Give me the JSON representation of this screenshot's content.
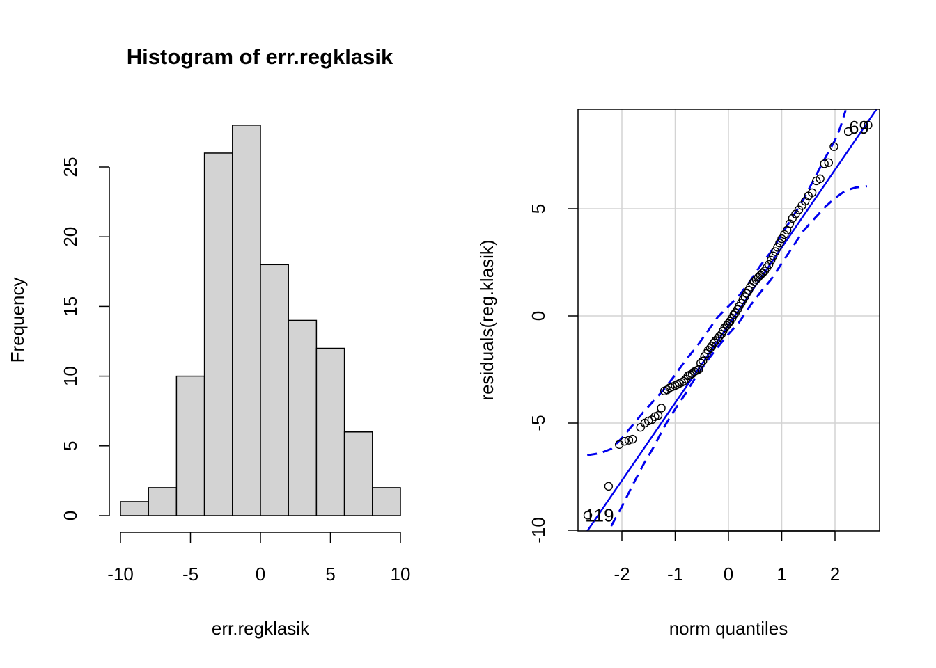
{
  "chart_data": [
    {
      "type": "bar",
      "title": "Histogram of err.regklasik",
      "xlabel": "err.regklasik",
      "ylabel": "Frequency",
      "bin_edges": [
        -10,
        -8,
        -6,
        -4,
        -2,
        0,
        2,
        4,
        6,
        8,
        10
      ],
      "values": [
        1,
        2,
        10,
        26,
        28,
        18,
        14,
        12,
        6,
        2
      ],
      "xlim": [
        -10,
        10
      ],
      "ylim": [
        0,
        25
      ],
      "xticks": [
        -10,
        -5,
        0,
        5,
        10
      ],
      "xtick_labels": [
        "-10",
        "-5",
        "0",
        "5",
        "10"
      ],
      "yticks": [
        0,
        5,
        10,
        15,
        20,
        25
      ],
      "ytick_labels": [
        "0",
        "5",
        "10",
        "15",
        "20",
        "25"
      ],
      "bar_fill": "#d3d3d3",
      "grid": false
    },
    {
      "type": "scatter",
      "title": "",
      "xlabel": "norm quantiles",
      "ylabel": "residuals(reg.klasik)",
      "xlim": [
        -2.75,
        2.85
      ],
      "ylim": [
        -10,
        9.6
      ],
      "xticks": [
        -2,
        -1,
        0,
        1,
        2
      ],
      "xtick_labels": [
        "-2",
        "-1",
        "0",
        "1",
        "2"
      ],
      "yticks": [
        -10,
        -5,
        0,
        5
      ],
      "ytick_labels": [
        "-10",
        "-5",
        "0",
        "5"
      ],
      "grid": true,
      "line_color": "#0000ee",
      "annotations": [
        {
          "text": "69",
          "x": 2.45,
          "y": 8.8
        },
        {
          "text": "119",
          "x": -2.42,
          "y": -9.3
        }
      ],
      "points": [
        [
          -2.64,
          -9.3
        ],
        [
          -2.25,
          -7.95
        ],
        [
          -2.05,
          -6.0
        ],
        [
          -1.95,
          -5.85
        ],
        [
          -1.87,
          -5.8
        ],
        [
          -1.8,
          -5.75
        ],
        [
          -1.65,
          -5.2
        ],
        [
          -1.57,
          -5.0
        ],
        [
          -1.5,
          -4.9
        ],
        [
          -1.44,
          -4.85
        ],
        [
          -1.38,
          -4.7
        ],
        [
          -1.32,
          -4.65
        ],
        [
          -1.26,
          -4.3
        ],
        [
          -1.2,
          -3.5
        ],
        [
          -1.15,
          -3.45
        ],
        [
          -1.1,
          -3.35
        ],
        [
          -1.05,
          -3.3
        ],
        [
          -1.0,
          -3.25
        ],
        [
          -0.96,
          -3.2
        ],
        [
          -0.92,
          -3.15
        ],
        [
          -0.88,
          -3.1
        ],
        [
          -0.84,
          -3.05
        ],
        [
          -0.8,
          -2.95
        ],
        [
          -0.76,
          -2.8
        ],
        [
          -0.72,
          -2.75
        ],
        [
          -0.68,
          -2.7
        ],
        [
          -0.64,
          -2.6
        ],
        [
          -0.6,
          -2.55
        ],
        [
          -0.56,
          -2.5
        ],
        [
          -0.52,
          -2.2
        ],
        [
          -0.48,
          -2.1
        ],
        [
          -0.45,
          -1.9
        ],
        [
          -0.41,
          -1.75
        ],
        [
          -0.38,
          -1.6
        ],
        [
          -0.34,
          -1.5
        ],
        [
          -0.31,
          -1.4
        ],
        [
          -0.27,
          -1.25
        ],
        [
          -0.24,
          -1.15
        ],
        [
          -0.2,
          -1.05
        ],
        [
          -0.17,
          -0.95
        ],
        [
          -0.13,
          -0.85
        ],
        [
          -0.1,
          -0.7
        ],
        [
          -0.07,
          -0.55
        ],
        [
          -0.03,
          -0.45
        ],
        [
          0.0,
          -0.35
        ],
        [
          0.03,
          -0.25
        ],
        [
          0.07,
          -0.1
        ],
        [
          0.1,
          0.05
        ],
        [
          0.13,
          0.15
        ],
        [
          0.17,
          0.3
        ],
        [
          0.2,
          0.45
        ],
        [
          0.24,
          0.6
        ],
        [
          0.27,
          0.75
        ],
        [
          0.31,
          0.9
        ],
        [
          0.34,
          1.05
        ],
        [
          0.38,
          1.2
        ],
        [
          0.41,
          1.35
        ],
        [
          0.45,
          1.5
        ],
        [
          0.48,
          1.6
        ],
        [
          0.52,
          1.7
        ],
        [
          0.56,
          1.8
        ],
        [
          0.6,
          1.9
        ],
        [
          0.64,
          2.0
        ],
        [
          0.68,
          2.1
        ],
        [
          0.72,
          2.25
        ],
        [
          0.76,
          2.4
        ],
        [
          0.8,
          2.6
        ],
        [
          0.84,
          2.8
        ],
        [
          0.88,
          3.0
        ],
        [
          0.92,
          3.2
        ],
        [
          0.96,
          3.4
        ],
        [
          1.0,
          3.6
        ],
        [
          1.05,
          3.8
        ],
        [
          1.1,
          4.0
        ],
        [
          1.15,
          4.3
        ],
        [
          1.2,
          4.55
        ],
        [
          1.26,
          4.75
        ],
        [
          1.32,
          4.95
        ],
        [
          1.38,
          5.15
        ],
        [
          1.44,
          5.35
        ],
        [
          1.5,
          5.6
        ],
        [
          1.57,
          5.75
        ],
        [
          1.65,
          6.3
        ],
        [
          1.72,
          6.4
        ],
        [
          1.8,
          7.1
        ],
        [
          1.88,
          7.15
        ],
        [
          1.98,
          7.9
        ],
        [
          2.25,
          8.6
        ],
        [
          2.62,
          8.9
        ]
      ],
      "reference_line": {
        "x": [
          -2.75,
          2.85
        ],
        "y": [
          -10.4,
          9.9
        ]
      },
      "envelope_upper": [
        [
          -2.65,
          -6.5
        ],
        [
          -2.4,
          -6.4
        ],
        [
          -2.2,
          -6.2
        ],
        [
          -2.0,
          -5.7
        ],
        [
          -1.8,
          -5.1
        ],
        [
          -1.6,
          -4.5
        ],
        [
          -1.4,
          -3.95
        ],
        [
          -1.2,
          -3.4
        ],
        [
          -1.0,
          -2.75
        ],
        [
          -0.8,
          -2.05
        ],
        [
          -0.6,
          -1.45
        ],
        [
          -0.4,
          -0.75
        ],
        [
          -0.2,
          -0.05
        ],
        [
          0.0,
          0.45
        ],
        [
          0.2,
          0.95
        ],
        [
          0.4,
          1.6
        ],
        [
          0.6,
          2.35
        ],
        [
          0.8,
          3.0
        ],
        [
          1.0,
          3.8
        ],
        [
          1.2,
          4.6
        ],
        [
          1.4,
          5.4
        ],
        [
          1.6,
          6.35
        ],
        [
          1.8,
          7.3
        ],
        [
          2.0,
          8.2
        ],
        [
          2.1,
          8.8
        ],
        [
          2.2,
          9.6
        ]
      ],
      "envelope_lower": [
        [
          -2.2,
          -9.8
        ],
        [
          -2.0,
          -8.9
        ],
        [
          -1.8,
          -7.9
        ],
        [
          -1.6,
          -6.95
        ],
        [
          -1.4,
          -6.1
        ],
        [
          -1.2,
          -5.15
        ],
        [
          -1.0,
          -4.35
        ],
        [
          -0.8,
          -3.6
        ],
        [
          -0.6,
          -2.8
        ],
        [
          -0.4,
          -2.1
        ],
        [
          -0.2,
          -1.45
        ],
        [
          0.0,
          -0.85
        ],
        [
          0.2,
          -0.3
        ],
        [
          0.4,
          0.45
        ],
        [
          0.6,
          1.1
        ],
        [
          0.8,
          1.7
        ],
        [
          1.0,
          2.45
        ],
        [
          1.2,
          3.2
        ],
        [
          1.4,
          3.95
        ],
        [
          1.6,
          4.5
        ],
        [
          1.8,
          5.05
        ],
        [
          2.0,
          5.5
        ],
        [
          2.2,
          5.85
        ],
        [
          2.4,
          6.0
        ],
        [
          2.6,
          6.05
        ]
      ]
    }
  ]
}
